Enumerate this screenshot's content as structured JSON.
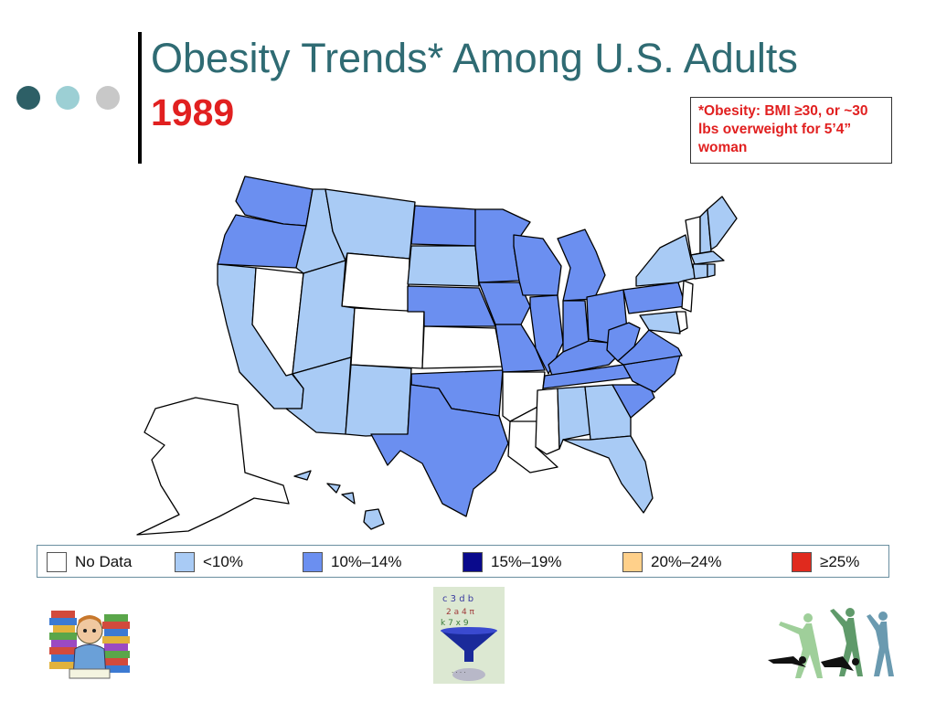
{
  "slide": {
    "title": "Obesity Trends* Among U.S. Adults",
    "year": "1989",
    "footnote": "*Obesity: BMI ≥30, or ~30 lbs overweight for 5’4” woman"
  },
  "colors": {
    "title": "#2f6b73",
    "year": "#e12020",
    "dots": [
      "#2d5f66",
      "#9ccfd4",
      "#c8c8c8"
    ],
    "no_data": "#ffffff",
    "lt10": "#a9cbf5",
    "p10_14": "#6b8ff0",
    "p15_19": "#0a0a8c",
    "p20_24": "#ffd08a",
    "gte25": "#e02a1e"
  },
  "legend": [
    {
      "label": "No Data",
      "color": "#ffffff"
    },
    {
      "label": "<10%",
      "color": "#a9cbf5"
    },
    {
      "label": "10%–14%",
      "color": "#6b8ff0"
    },
    {
      "label": "15%–19%",
      "color": "#0a0a8c"
    },
    {
      "label": "20%–24%",
      "color": "#ffd08a"
    },
    {
      "label": "≥25%",
      "color": "#e02a1e"
    }
  ],
  "map": {
    "region": "United States",
    "categories": {
      "no_data": [
        "NV",
        "WY",
        "CO",
        "KS",
        "AR",
        "MS",
        "LA",
        "AK",
        "VT",
        "NJ",
        "DE"
      ],
      "lt10": [
        "CA",
        "AZ",
        "UT",
        "ID",
        "MT",
        "NM",
        "SD",
        "AL",
        "GA",
        "FL",
        "NY",
        "ME",
        "NH",
        "MA",
        "CT",
        "RI",
        "HI",
        "MD"
      ],
      "p10_14": [
        "WA",
        "OR",
        "ND",
        "NE",
        "MN",
        "IA",
        "MO",
        "OK",
        "TX",
        "WI",
        "IL",
        "IN",
        "MI",
        "OH",
        "KY",
        "TN",
        "WV",
        "VA",
        "NC",
        "SC",
        "PA"
      ],
      "p15_19": [],
      "p20_24": [],
      "gte25": []
    }
  }
}
